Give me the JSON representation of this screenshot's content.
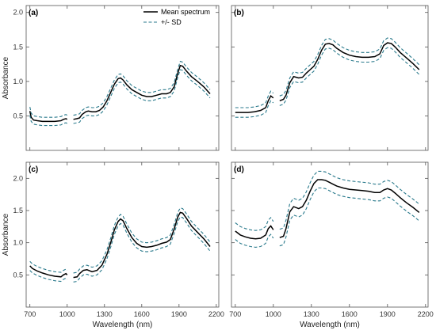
{
  "figure": {
    "ylabel": "Absorbance",
    "xlabel": "Wavelength (nm)",
    "legend": {
      "mean_label": "Mean spectrum",
      "sd_label": "+/- SD",
      "placement": "top-center of panel (a)"
    },
    "colors": {
      "mean": "#000000",
      "sd": "#2a7a8c",
      "frame": "#555555"
    }
  },
  "chart_data": [
    {
      "type": "line",
      "panel_label": "(a)",
      "xlim": [
        670,
        2220
      ],
      "ylim": [
        0,
        2.1
      ],
      "xticks": [
        700,
        1000,
        1300,
        1600,
        1900,
        2200
      ],
      "yticks": [
        0.5,
        1.0,
        1.5,
        2.0
      ],
      "ytick_labels": [
        "0.5",
        "1.0",
        "1.5",
        "2.0"
      ],
      "show_xticklabels": false,
      "show_yticklabels": true,
      "show_xlabel": false,
      "show_ylabel": true,
      "gap": [
        1010,
        1050
      ],
      "series": [
        {
          "name": "Mean spectrum",
          "x": [
            700,
            710,
            730,
            760,
            800,
            850,
            900,
            950,
            970,
            990,
            1000,
            1050,
            1080,
            1100,
            1120,
            1150,
            1170,
            1200,
            1230,
            1260,
            1290,
            1320,
            1350,
            1380,
            1410,
            1430,
            1450,
            1480,
            1520,
            1560,
            1600,
            1640,
            1680,
            1720,
            1760,
            1800,
            1830,
            1860,
            1890,
            1910,
            1930,
            1960,
            2000,
            2050,
            2100,
            2150
          ],
          "y": [
            0.57,
            0.48,
            0.44,
            0.43,
            0.42,
            0.42,
            0.42,
            0.43,
            0.45,
            0.46,
            0.45,
            0.45,
            0.46,
            0.47,
            0.52,
            0.56,
            0.57,
            0.56,
            0.56,
            0.58,
            0.63,
            0.72,
            0.84,
            0.96,
            1.04,
            1.05,
            1.02,
            0.95,
            0.88,
            0.84,
            0.8,
            0.78,
            0.78,
            0.8,
            0.82,
            0.82,
            0.84,
            0.92,
            1.12,
            1.23,
            1.22,
            1.15,
            1.07,
            1.0,
            0.92,
            0.82
          ]
        },
        {
          "name": "+/- SD",
          "role": "upper",
          "offset": 0.06
        },
        {
          "name": "+/- SD",
          "role": "lower",
          "offset": 0.06
        }
      ]
    },
    {
      "type": "line",
      "panel_label": "(b)",
      "xlim": [
        670,
        2220
      ],
      "ylim": [
        0,
        2.1
      ],
      "xticks": [
        700,
        1000,
        1300,
        1600,
        1900,
        2200
      ],
      "yticks": [
        0.5,
        1.0,
        1.5,
        2.0
      ],
      "ytick_labels": [
        "",
        "",
        "",
        ""
      ],
      "show_xticklabels": false,
      "show_yticklabels": false,
      "show_xlabel": false,
      "show_ylabel": false,
      "gap": [
        1010,
        1050
      ],
      "series": [
        {
          "name": "Mean spectrum",
          "x": [
            700,
            750,
            800,
            850,
            900,
            940,
            960,
            980,
            1000,
            1050,
            1080,
            1100,
            1130,
            1160,
            1200,
            1230,
            1260,
            1290,
            1320,
            1350,
            1380,
            1410,
            1440,
            1470,
            1500,
            1550,
            1600,
            1650,
            1700,
            1750,
            1800,
            1840,
            1870,
            1900,
            1930,
            1960,
            2000,
            2050,
            2100,
            2150
          ],
          "y": [
            0.55,
            0.55,
            0.55,
            0.56,
            0.58,
            0.62,
            0.72,
            0.79,
            0.76,
            0.72,
            0.74,
            0.8,
            0.98,
            1.07,
            1.05,
            1.06,
            1.12,
            1.17,
            1.22,
            1.32,
            1.45,
            1.54,
            1.55,
            1.53,
            1.48,
            1.42,
            1.38,
            1.36,
            1.35,
            1.35,
            1.36,
            1.4,
            1.52,
            1.56,
            1.55,
            1.5,
            1.42,
            1.34,
            1.26,
            1.17
          ]
        },
        {
          "name": "+/- SD",
          "role": "upper",
          "offset": 0.07
        },
        {
          "name": "+/- SD",
          "role": "lower",
          "offset": 0.07
        }
      ]
    },
    {
      "type": "line",
      "panel_label": "(c)",
      "xlim": [
        670,
        2220
      ],
      "ylim": [
        0,
        2.25
      ],
      "xticks": [
        700,
        1000,
        1300,
        1600,
        1900,
        2200
      ],
      "yticks": [
        0.5,
        1.0,
        1.5,
        2.0
      ],
      "ytick_labels": [
        "0.5",
        "1.0",
        "1.5",
        "2.0"
      ],
      "show_xticklabels": true,
      "show_yticklabels": true,
      "show_xlabel": true,
      "show_ylabel": true,
      "gap": [
        1010,
        1050
      ],
      "series": [
        {
          "name": "Mean spectrum",
          "x": [
            700,
            720,
            760,
            800,
            850,
            900,
            950,
            970,
            990,
            1000,
            1050,
            1080,
            1100,
            1130,
            1160,
            1200,
            1240,
            1280,
            1320,
            1350,
            1380,
            1410,
            1430,
            1450,
            1480,
            1520,
            1560,
            1600,
            1640,
            1680,
            1720,
            1760,
            1800,
            1830,
            1860,
            1890,
            1910,
            1930,
            1960,
            2000,
            2050,
            2100,
            2150
          ],
          "y": [
            0.64,
            0.6,
            0.56,
            0.53,
            0.5,
            0.48,
            0.47,
            0.5,
            0.52,
            0.5,
            0.46,
            0.47,
            0.52,
            0.57,
            0.58,
            0.55,
            0.57,
            0.65,
            0.82,
            1.0,
            1.2,
            1.33,
            1.37,
            1.34,
            1.22,
            1.08,
            0.99,
            0.94,
            0.93,
            0.94,
            0.96,
            0.99,
            1.01,
            1.05,
            1.21,
            1.4,
            1.47,
            1.46,
            1.38,
            1.26,
            1.16,
            1.06,
            0.94
          ]
        },
        {
          "name": "+/- SD",
          "role": "upper",
          "offset": 0.07
        },
        {
          "name": "+/- SD",
          "role": "lower",
          "offset": 0.07
        }
      ]
    },
    {
      "type": "line",
      "panel_label": "(d)",
      "xlim": [
        670,
        2220
      ],
      "ylim": [
        0,
        2.25
      ],
      "xticks": [
        700,
        1000,
        1300,
        1600,
        1900,
        2200
      ],
      "yticks": [
        0.5,
        1.0,
        1.5,
        2.0
      ],
      "ytick_labels": [
        "",
        "",
        "",
        ""
      ],
      "show_xticklabels": true,
      "show_yticklabels": false,
      "show_xlabel": true,
      "show_ylabel": false,
      "gap": [
        1010,
        1050
      ],
      "series": [
        {
          "name": "Mean spectrum",
          "x": [
            700,
            740,
            780,
            820,
            860,
            900,
            940,
            960,
            980,
            1000,
            1050,
            1080,
            1100,
            1130,
            1160,
            1200,
            1230,
            1260,
            1290,
            1320,
            1350,
            1380,
            1410,
            1440,
            1470,
            1500,
            1550,
            1600,
            1650,
            1700,
            1750,
            1800,
            1840,
            1870,
            1900,
            1930,
            1960,
            2000,
            2050,
            2100,
            2150
          ],
          "y": [
            1.18,
            1.12,
            1.09,
            1.07,
            1.06,
            1.07,
            1.12,
            1.22,
            1.26,
            1.2,
            1.08,
            1.1,
            1.22,
            1.48,
            1.56,
            1.53,
            1.56,
            1.66,
            1.8,
            1.92,
            1.98,
            1.98,
            1.97,
            1.94,
            1.91,
            1.88,
            1.85,
            1.83,
            1.82,
            1.81,
            1.8,
            1.78,
            1.78,
            1.82,
            1.84,
            1.82,
            1.77,
            1.7,
            1.62,
            1.55,
            1.47
          ]
        },
        {
          "name": "+/- SD",
          "role": "upper",
          "offset": 0.13
        },
        {
          "name": "+/- SD",
          "role": "lower",
          "offset": 0.13
        }
      ]
    }
  ]
}
